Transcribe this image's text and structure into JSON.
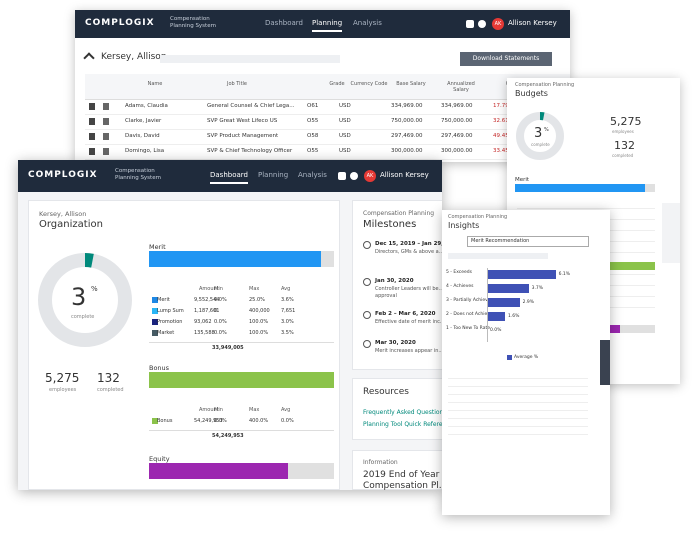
{
  "back_window": {
    "logo": "COMPLOGIX",
    "app_name": "Compensation Planning System",
    "nav": [
      "Dashboard",
      "Planning",
      "Analysis"
    ],
    "active_nav": 1,
    "user": "Allison Kersey",
    "initials": "AK",
    "employee": "Kersey, Allison",
    "download": "Download Statements",
    "table": {
      "headers": [
        "Name",
        "Job Title",
        "Grade",
        "Currency Code",
        "Base Salary",
        "Annualized Salary",
        "Comp"
      ],
      "rows": [
        [
          "Adams, Claudia",
          "General Counsel & Chief Lega...",
          "O61",
          "USD",
          "334,969.00",
          "334,969.00",
          "17.79%"
        ],
        [
          "Clarke, Javier",
          "SVP Great West Lifeco US",
          "O55",
          "USD",
          "750,000.00",
          "750,000.00",
          "32.61%"
        ],
        [
          "Davis, David",
          "SVP Product Management",
          "O58",
          "USD",
          "297,469.00",
          "297,469.00",
          "49.45%"
        ],
        [
          "Domingo, Lisa",
          "SVP & Chief Technology Officer",
          "O55",
          "USD",
          "300,000.00",
          "300,000.00",
          "33.45%"
        ]
      ]
    }
  },
  "budgets": {
    "kicker": "Compensation Planning",
    "title": "Budgets",
    "percent": 3,
    "percent_unit": "%",
    "percent_caption": "complete",
    "employees": "5,275",
    "employees_label": "employees",
    "completed": "132",
    "completed_label": "completed",
    "merit_label": "Merit",
    "merit_progress": 93,
    "bonus_progress": 100,
    "equity_progress": 75
  },
  "main_window": {
    "logo": "COMPLOGIX",
    "app_name": "Compensation Planning System",
    "nav": [
      "Dashboard",
      "Planning",
      "Analysis"
    ],
    "active_nav": 0,
    "user": "Allison Kersey",
    "initials": "AK",
    "org": {
      "employee": "Kersey, Allison",
      "title": "Organization",
      "percent": 3,
      "percent_unit": "%",
      "percent_caption": "complete",
      "employees": "5,275",
      "employees_label": "employees",
      "completed": "132",
      "completed_label": "completed"
    },
    "columns": [
      "Amount",
      "Min",
      "Max",
      "Avg"
    ],
    "merit": {
      "label": "Merit",
      "progress": 93,
      "color": "#2196f3",
      "rows": [
        [
          "Merit",
          "9,552,544",
          "0.0%",
          "25.0%",
          "3.6%"
        ],
        [
          "Lump Sum",
          "1,187,601",
          "0",
          "400,000",
          "7,651"
        ],
        [
          "Promotion",
          "93,062",
          "0.0%",
          "100.0%",
          "3.0%"
        ],
        [
          "Market",
          "135,588",
          "0.0%",
          "100.0%",
          "3.5%"
        ]
      ],
      "swatches": [
        "#1e88e5",
        "#29b6f6",
        "#1a237e",
        "#455a64"
      ],
      "total": "33,949,005"
    },
    "bonus": {
      "label": "Bonus",
      "progress": 100,
      "color": "#8bc34a",
      "rows": [
        [
          "Bonus",
          "54,249,953",
          "0.0%",
          "400.0%",
          "0.0%"
        ]
      ],
      "swatches": [
        "#8bc34a"
      ],
      "total": "54,249,953"
    },
    "equity": {
      "label": "Equity",
      "progress": 75,
      "color": "#9c27b0"
    },
    "milestones": {
      "kicker": "Compensation Planning",
      "title": "Milestones",
      "items": [
        {
          "date": "Dec 15, 2019 – Jan 29, 2020",
          "text": "Directors, GMs & above a..."
        },
        {
          "date": "Jan 30, 2020",
          "text": "Controller Leaders will be... approval"
        },
        {
          "date": "Feb 2 – Mar 6, 2020",
          "text": "Effective date of merit inc..."
        },
        {
          "date": "Mar 30, 2020",
          "text": "Merit increases appear in..."
        }
      ]
    },
    "resources": {
      "title": "Resources",
      "links": [
        "Frequently Asked Questions",
        "Planning Tool Quick Reference"
      ]
    },
    "information": {
      "kicker": "Information",
      "title": "2019 End of Year Compensation Pl..."
    }
  },
  "insights": {
    "kicker": "Compensation Planning",
    "title": "Insights",
    "dropdown": "Merit Recommendation",
    "chart": {
      "type": "bar",
      "orientation": "horizontal",
      "categories": [
        "5 - Exceeds",
        "4 - Achieves",
        "3 - Partially Achieves",
        "2 - Does not Achieve",
        "1 - Too New To Rate"
      ],
      "series": [
        {
          "name": "Average %",
          "color": "#3f51b5",
          "values": [
            6.1,
            3.7,
            2.9,
            1.6,
            0.0
          ],
          "value_labels": [
            "6.1%",
            "3.7%",
            "2.9%",
            "1.6%",
            "0.0%"
          ]
        }
      ],
      "xlim": [
        0,
        8
      ]
    }
  }
}
